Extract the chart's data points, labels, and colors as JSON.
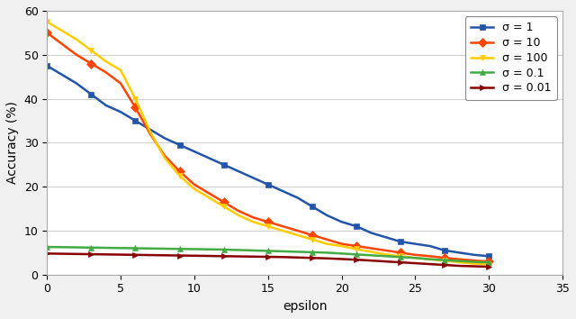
{
  "title": "",
  "xlabel": "epsilon",
  "ylabel": "Accuracy (%)",
  "xlim": [
    0,
    35
  ],
  "ylim": [
    0,
    60
  ],
  "yticks": [
    0,
    10,
    20,
    30,
    40,
    50,
    60
  ],
  "xticks": [
    0,
    5,
    10,
    15,
    20,
    25,
    30,
    35
  ],
  "series": [
    {
      "label": "σ = 1",
      "color": "#2255aa",
      "marker": "s",
      "x": [
        0,
        1,
        2,
        3,
        4,
        5,
        6,
        7,
        8,
        9,
        10,
        11,
        12,
        13,
        14,
        15,
        16,
        17,
        18,
        19,
        20,
        21,
        22,
        23,
        24,
        25,
        26,
        27,
        28,
        29,
        30
      ],
      "y": [
        47.5,
        45.5,
        43.5,
        41.0,
        38.5,
        37.0,
        35.0,
        33.0,
        31.0,
        29.5,
        28.0,
        26.5,
        25.0,
        23.5,
        22.0,
        20.5,
        19.0,
        17.5,
        15.5,
        13.5,
        12.0,
        11.0,
        9.5,
        8.5,
        7.5,
        7.0,
        6.5,
        5.5,
        5.0,
        4.5,
        4.2
      ]
    },
    {
      "label": "σ = 10",
      "color": "#ff4400",
      "marker": "D",
      "x": [
        0,
        1,
        2,
        3,
        4,
        5,
        6,
        7,
        8,
        9,
        10,
        11,
        12,
        13,
        14,
        15,
        16,
        17,
        18,
        19,
        20,
        21,
        22,
        23,
        24,
        25,
        26,
        27,
        28,
        29,
        30
      ],
      "y": [
        55.0,
        52.5,
        50.0,
        48.0,
        46.0,
        43.5,
        38.0,
        32.0,
        27.0,
        23.5,
        20.5,
        18.5,
        16.5,
        14.5,
        13.0,
        12.0,
        11.0,
        10.0,
        9.0,
        8.0,
        7.0,
        6.5,
        6.0,
        5.5,
        5.0,
        4.5,
        4.2,
        3.8,
        3.5,
        3.2,
        3.0
      ]
    },
    {
      "label": "σ = 100",
      "color": "#ffcc00",
      "marker": "v",
      "x": [
        0,
        1,
        2,
        3,
        4,
        5,
        6,
        7,
        8,
        9,
        10,
        11,
        12,
        13,
        14,
        15,
        16,
        17,
        18,
        19,
        20,
        21,
        22,
        23,
        24,
        25,
        26,
        27,
        28,
        29,
        30
      ],
      "y": [
        57.5,
        55.5,
        53.5,
        51.0,
        48.5,
        46.5,
        40.0,
        32.5,
        26.5,
        22.5,
        19.5,
        17.5,
        15.5,
        13.5,
        12.0,
        11.0,
        10.0,
        9.0,
        8.0,
        7.0,
        6.5,
        5.8,
        5.2,
        4.6,
        4.2,
        3.8,
        3.5,
        3.2,
        2.8,
        2.5,
        2.3
      ]
    },
    {
      "label": "σ = 0.1",
      "color": "#44aa44",
      "marker": "^",
      "x": [
        0,
        1,
        2,
        3,
        4,
        5,
        6,
        7,
        8,
        9,
        10,
        11,
        12,
        13,
        14,
        15,
        16,
        17,
        18,
        19,
        20,
        21,
        22,
        23,
        24,
        25,
        26,
        27,
        28,
        29,
        30
      ],
      "y": [
        6.3,
        6.25,
        6.2,
        6.15,
        6.1,
        6.05,
        6.0,
        5.95,
        5.9,
        5.85,
        5.8,
        5.75,
        5.7,
        5.6,
        5.5,
        5.4,
        5.3,
        5.2,
        5.1,
        5.0,
        4.8,
        4.6,
        4.4,
        4.2,
        4.0,
        3.8,
        3.5,
        3.3,
        3.1,
        2.9,
        2.8
      ]
    },
    {
      "label": "σ = 0.01",
      "color": "#880000",
      "marker": ">",
      "x": [
        0,
        1,
        2,
        3,
        4,
        5,
        6,
        7,
        8,
        9,
        10,
        11,
        12,
        13,
        14,
        15,
        16,
        17,
        18,
        19,
        20,
        21,
        22,
        23,
        24,
        25,
        26,
        27,
        28,
        29,
        30
      ],
      "y": [
        4.8,
        4.75,
        4.7,
        4.65,
        4.6,
        4.55,
        4.5,
        4.45,
        4.4,
        4.35,
        4.3,
        4.25,
        4.2,
        4.15,
        4.1,
        4.05,
        4.0,
        3.9,
        3.8,
        3.7,
        3.55,
        3.4,
        3.2,
        3.0,
        2.8,
        2.6,
        2.4,
        2.2,
        2.0,
        1.9,
        1.8
      ]
    }
  ],
  "legend_loc": "upper right",
  "grid": true,
  "background_color": "#ffffff",
  "figure_bg": "#f0f0f0"
}
